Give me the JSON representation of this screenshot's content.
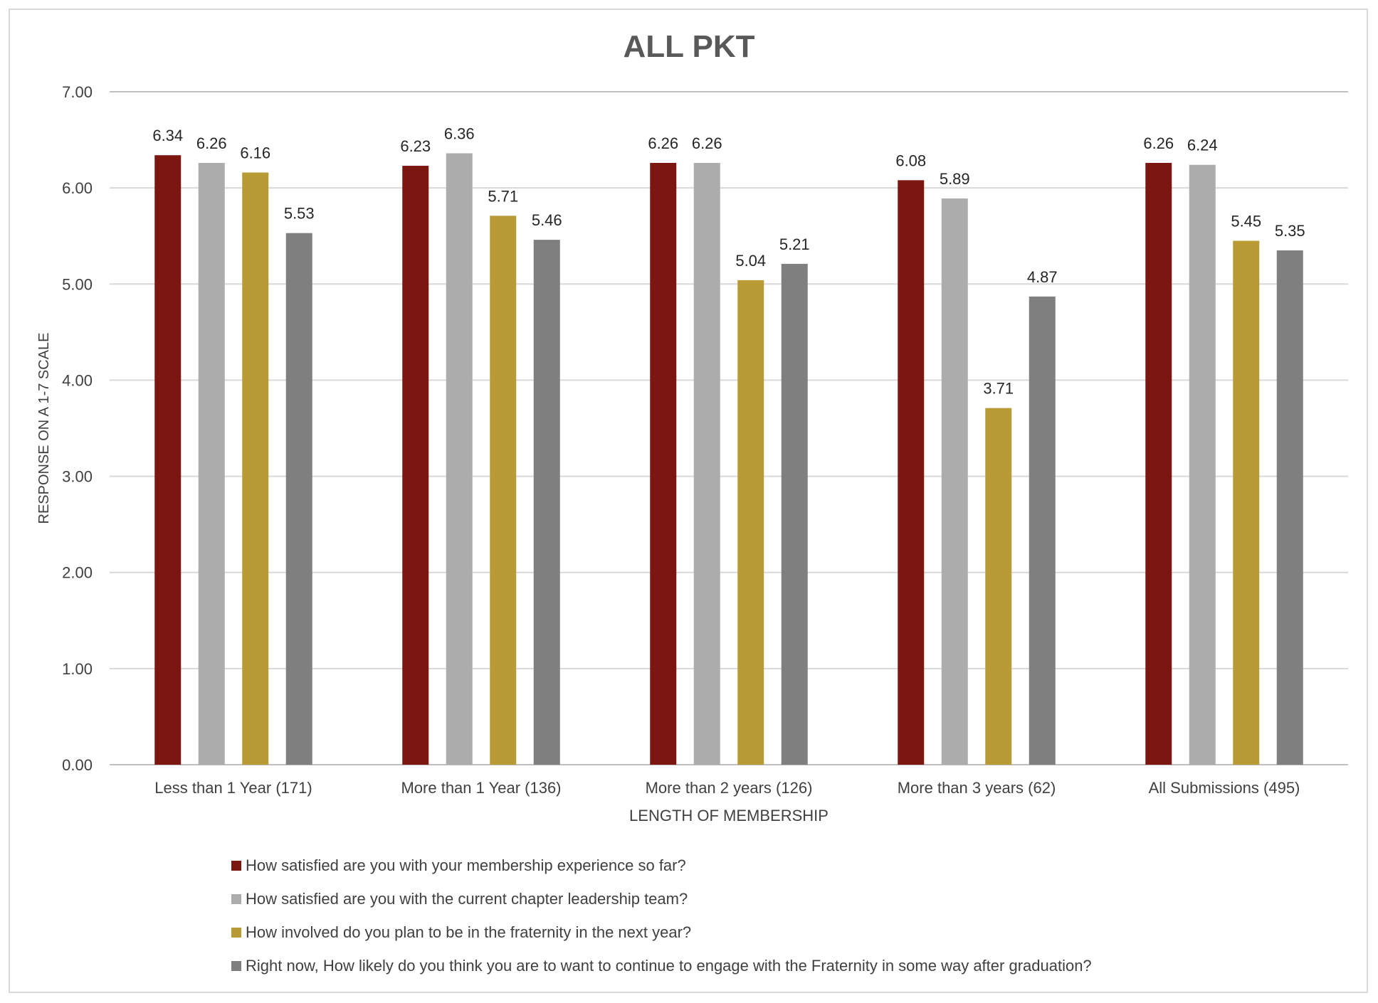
{
  "chart_data": {
    "type": "bar",
    "title": "ALL PKT",
    "xlabel": "LENGTH OF MEMBERSHIP",
    "ylabel": "RESPONSE ON A 1-7 SCALE",
    "ylim": [
      0,
      7
    ],
    "yticks": [
      "0.00",
      "1.00",
      "2.00",
      "3.00",
      "4.00",
      "5.00",
      "6.00",
      "7.00"
    ],
    "grid": true,
    "legend_position": "bottom",
    "categories": [
      "Less than 1 Year (171)",
      "More than 1 Year (136)",
      "More than 2 years (126)",
      "More than 3 years (62)",
      "All Submissions (495)"
    ],
    "series": [
      {
        "name": "How satisfied are you with your membership experience so far?",
        "color": "#7b1611",
        "values": [
          6.34,
          6.23,
          6.26,
          6.08,
          6.26
        ]
      },
      {
        "name": "How satisfied are you with the current chapter leadership team?",
        "color": "#acacac",
        "values": [
          6.26,
          6.36,
          6.26,
          5.89,
          6.24
        ]
      },
      {
        "name": "How involved do you plan to be in the fraternity in the next year?",
        "color": "#b99b35",
        "values": [
          6.16,
          5.71,
          5.04,
          3.71,
          5.45
        ]
      },
      {
        "name": "Right now, How likely do you think you are to want to continue to engage with the Fraternity in some way after graduation?",
        "color": "#7f7f7f",
        "values": [
          5.53,
          5.46,
          5.21,
          4.87,
          5.35
        ]
      }
    ]
  }
}
